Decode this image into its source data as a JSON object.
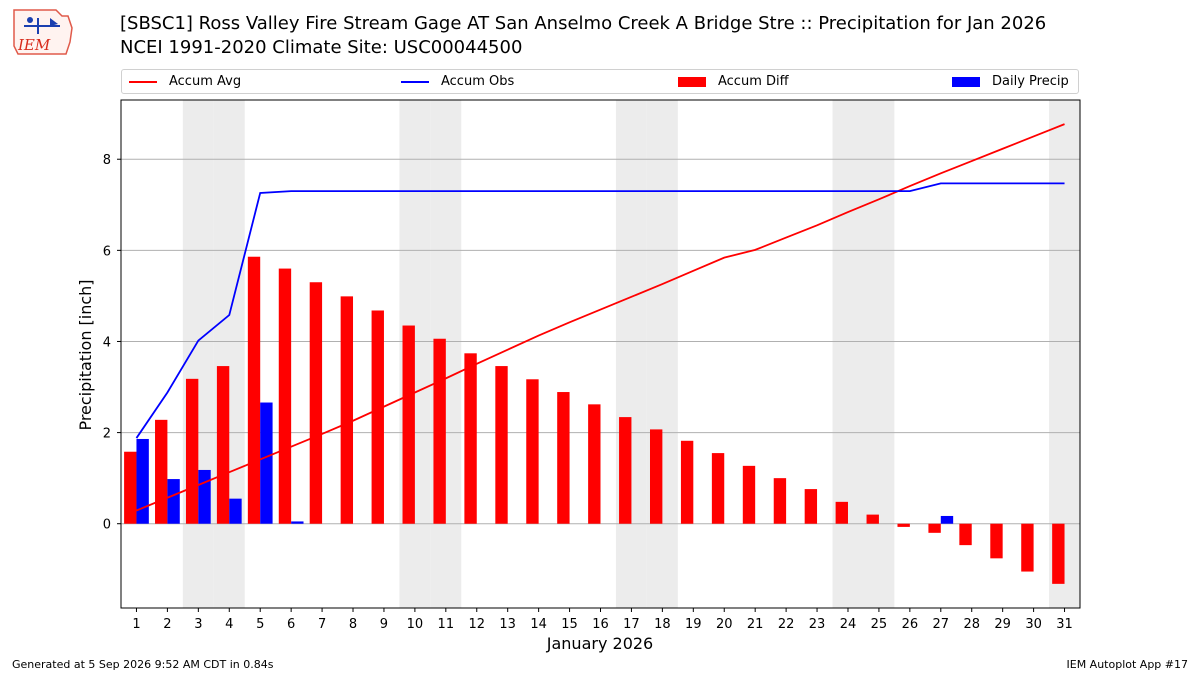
{
  "header": {
    "logo_text": "IEM",
    "title_line1": "[SBSC1] Ross Valley Fire Stream Gage  AT San Anselmo Creek A Bridge Stre :: Precipitation for Jan 2026",
    "title_line2": "NCEI 1991-2020 Climate Site: USC00044500"
  },
  "legend": {
    "items": [
      {
        "label": "Accum Avg",
        "kind": "line",
        "color": "#ff0000"
      },
      {
        "label": "Accum Obs",
        "kind": "line",
        "color": "#0000ff"
      },
      {
        "label": "Accum Diff",
        "kind": "patch",
        "color": "#ff0000"
      },
      {
        "label": "Daily Precip",
        "kind": "patch",
        "color": "#0000ff"
      }
    ]
  },
  "footer": {
    "left": "Generated at 5 Sep 2026 9:52 AM CDT in 0.84s",
    "right": "IEM Autoplot App #17"
  },
  "chart_data": {
    "type": "bar",
    "title": "[SBSC1] Ross Valley Fire Stream Gage  AT San Anselmo Creek A Bridge Stre :: Precipitation for Jan 2026",
    "xlabel": "January 2026",
    "ylabel": "Precipitation [inch]",
    "x": [
      1,
      2,
      3,
      4,
      5,
      6,
      7,
      8,
      9,
      10,
      11,
      12,
      13,
      14,
      15,
      16,
      17,
      18,
      19,
      20,
      21,
      22,
      23,
      24,
      25,
      26,
      27,
      28,
      29,
      30,
      31
    ],
    "xlim": [
      0.5,
      31.5
    ],
    "ylim": [
      -1.85,
      9.3
    ],
    "yticks": [
      0,
      2,
      4,
      6,
      8
    ],
    "grid": "y",
    "weekend_days": [
      3,
      4,
      10,
      11,
      17,
      18,
      24,
      25,
      31
    ],
    "weekend_color": "#ececec",
    "series": [
      {
        "name": "Accum Avg",
        "kind": "line",
        "color": "#ff0000",
        "values": [
          0.29,
          0.57,
          0.85,
          1.13,
          1.41,
          1.69,
          1.97,
          2.26,
          2.57,
          2.88,
          3.19,
          3.51,
          3.82,
          4.13,
          4.42,
          4.7,
          4.98,
          5.26,
          5.55,
          5.84,
          6.01,
          6.28,
          6.55,
          6.84,
          7.12,
          7.41,
          7.69,
          7.96,
          8.23,
          8.5,
          8.77
        ]
      },
      {
        "name": "Accum Obs",
        "kind": "line",
        "color": "#0000ff",
        "values": [
          1.88,
          2.88,
          4.02,
          4.58,
          7.26,
          7.3,
          7.3,
          7.3,
          7.3,
          7.3,
          7.3,
          7.3,
          7.3,
          7.3,
          7.3,
          7.3,
          7.3,
          7.3,
          7.3,
          7.3,
          7.3,
          7.3,
          7.3,
          7.3,
          7.3,
          7.3,
          7.47,
          7.47,
          7.47,
          7.47,
          7.47
        ]
      },
      {
        "name": "Accum Diff",
        "kind": "bar",
        "color": "#ff0000",
        "values": [
          1.58,
          2.28,
          3.18,
          3.46,
          5.86,
          5.6,
          5.3,
          4.99,
          4.68,
          4.35,
          4.06,
          3.74,
          3.46,
          3.17,
          2.89,
          2.62,
          2.34,
          2.07,
          1.82,
          1.55,
          1.27,
          1.0,
          0.76,
          0.48,
          0.2,
          -0.07,
          -0.2,
          -0.47,
          -0.76,
          -1.05,
          -1.32
        ]
      },
      {
        "name": "Daily Precip",
        "kind": "bar",
        "color": "#0000ff",
        "values": [
          1.86,
          0.98,
          1.18,
          0.55,
          2.66,
          0.05,
          0,
          0,
          0,
          0,
          0,
          0,
          0,
          0,
          0,
          0,
          0,
          0,
          0,
          0,
          0,
          0,
          0,
          0,
          0,
          0,
          0.17,
          0,
          0,
          0,
          0
        ]
      }
    ]
  }
}
